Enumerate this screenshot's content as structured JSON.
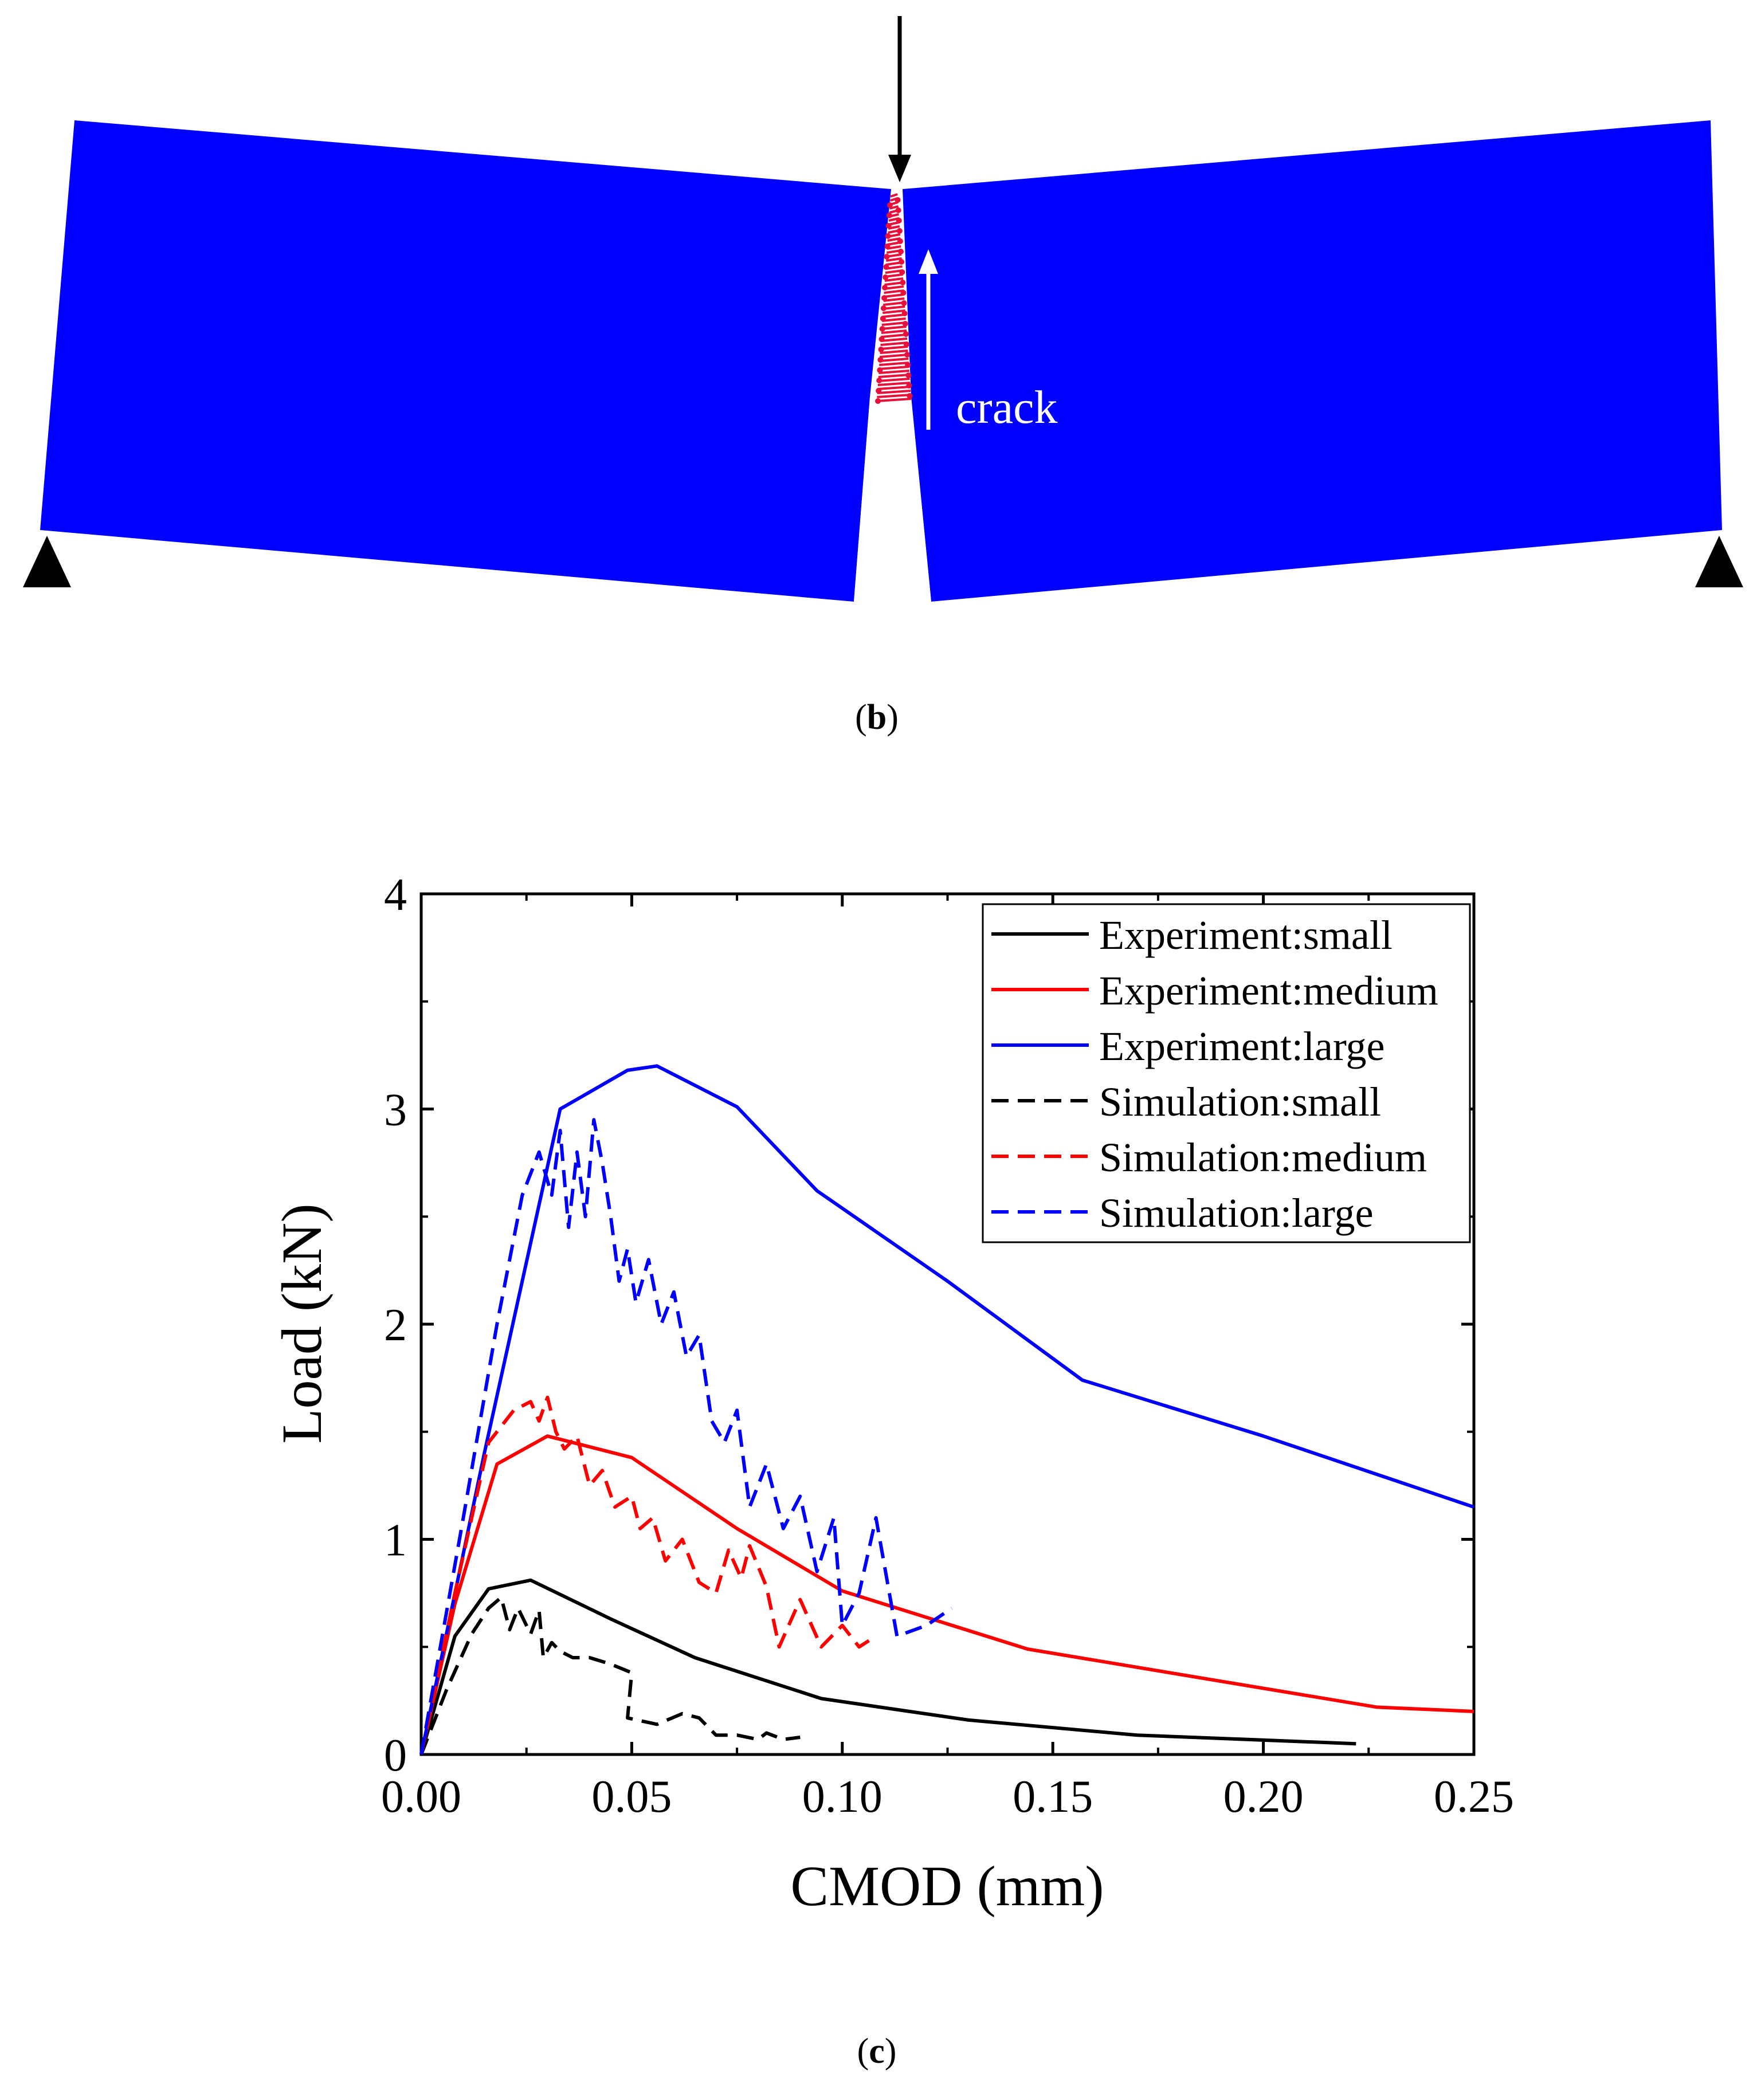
{
  "panel_b": {
    "label": "(b)",
    "label_letter": "b",
    "crack_label": "crack",
    "beam_color": "#0000ff",
    "crack_color": "#e8103a"
  },
  "panel_c": {
    "label": "(c)",
    "label_letter": "c"
  },
  "chart_data": {
    "type": "line",
    "title": "",
    "xlabel": "CMOD (mm)",
    "ylabel": "Load (kN)",
    "xlim": [
      0,
      0.25
    ],
    "ylim": [
      0,
      4
    ],
    "xticks": [
      "0.00",
      "0.05",
      "0.10",
      "0.15",
      "0.20",
      "0.25"
    ],
    "yticks": [
      "0",
      "1",
      "2",
      "3",
      "4"
    ],
    "grid": false,
    "legend_position": "top-right",
    "series": [
      {
        "name": "Experiment:small",
        "color": "#000000",
        "style": "solid",
        "x": [
          0,
          0.008,
          0.016,
          0.026,
          0.045,
          0.065,
          0.095,
          0.13,
          0.17,
          0.222
        ],
        "y": [
          0,
          0.55,
          0.77,
          0.81,
          0.63,
          0.45,
          0.26,
          0.16,
          0.09,
          0.05
        ]
      },
      {
        "name": "Experiment:medium",
        "color": "#ff0000",
        "style": "solid",
        "x": [
          0,
          0.008,
          0.018,
          0.03,
          0.05,
          0.075,
          0.1,
          0.144,
          0.19,
          0.227,
          0.25
        ],
        "y": [
          0,
          0.7,
          1.35,
          1.48,
          1.38,
          1.05,
          0.76,
          0.49,
          0.34,
          0.22,
          0.2
        ]
      },
      {
        "name": "Experiment:large",
        "color": "#0000ff",
        "style": "solid",
        "x": [
          0,
          0.015,
          0.033,
          0.049,
          0.056,
          0.075,
          0.094,
          0.125,
          0.157,
          0.2,
          0.25
        ],
        "y": [
          0,
          1.4,
          3.0,
          3.18,
          3.2,
          3.01,
          2.62,
          2.2,
          1.74,
          1.48,
          1.15
        ]
      },
      {
        "name": "Simulation:small",
        "color": "#000000",
        "style": "dashed",
        "x": [
          0,
          0.006,
          0.012,
          0.016,
          0.019,
          0.021,
          0.023,
          0.026,
          0.028,
          0.029,
          0.031,
          0.033,
          0.036,
          0.04,
          0.045,
          0.05,
          0.049,
          0.056,
          0.062,
          0.066,
          0.07,
          0.075,
          0.08,
          0.082,
          0.086,
          0.09
        ],
        "y": [
          0,
          0.3,
          0.56,
          0.68,
          0.73,
          0.58,
          0.68,
          0.56,
          0.67,
          0.45,
          0.52,
          0.48,
          0.45,
          0.45,
          0.42,
          0.38,
          0.17,
          0.14,
          0.19,
          0.17,
          0.09,
          0.09,
          0.07,
          0.1,
          0.07,
          0.08
        ]
      },
      {
        "name": "Simulation:medium",
        "color": "#ff0000",
        "style": "dashed",
        "x": [
          0,
          0.008,
          0.016,
          0.022,
          0.026,
          0.028,
          0.03,
          0.032,
          0.034,
          0.037,
          0.04,
          0.043,
          0.046,
          0.05,
          0.052,
          0.055,
          0.058,
          0.062,
          0.066,
          0.07,
          0.073,
          0.076,
          0.078,
          0.082,
          0.085,
          0.09,
          0.095,
          0.1,
          0.104,
          0.108
        ],
        "y": [
          0,
          0.75,
          1.45,
          1.6,
          1.64,
          1.55,
          1.66,
          1.5,
          1.42,
          1.48,
          1.25,
          1.32,
          1.15,
          1.2,
          1.05,
          1.1,
          0.9,
          1.0,
          0.8,
          0.75,
          0.95,
          0.82,
          0.97,
          0.78,
          0.5,
          0.72,
          0.5,
          0.6,
          0.5,
          0.55
        ]
      },
      {
        "name": "Simulation:large",
        "color": "#0000ff",
        "style": "dashed",
        "x": [
          0,
          0.01,
          0.018,
          0.024,
          0.028,
          0.031,
          0.033,
          0.035,
          0.037,
          0.039,
          0.041,
          0.043,
          0.045,
          0.047,
          0.049,
          0.051,
          0.054,
          0.057,
          0.06,
          0.063,
          0.066,
          0.069,
          0.072,
          0.075,
          0.078,
          0.082,
          0.086,
          0.09,
          0.094,
          0.098,
          0.1,
          0.104,
          0.108,
          0.113,
          0.12,
          0.126
        ],
        "y": [
          0,
          1.1,
          2.0,
          2.6,
          2.8,
          2.6,
          2.9,
          2.45,
          2.8,
          2.5,
          2.95,
          2.75,
          2.5,
          2.2,
          2.35,
          2.1,
          2.3,
          2.0,
          2.15,
          1.85,
          1.95,
          1.55,
          1.45,
          1.6,
          1.15,
          1.35,
          1.05,
          1.2,
          0.85,
          1.1,
          0.6,
          0.75,
          1.1,
          0.55,
          0.6,
          0.68
        ]
      }
    ]
  }
}
